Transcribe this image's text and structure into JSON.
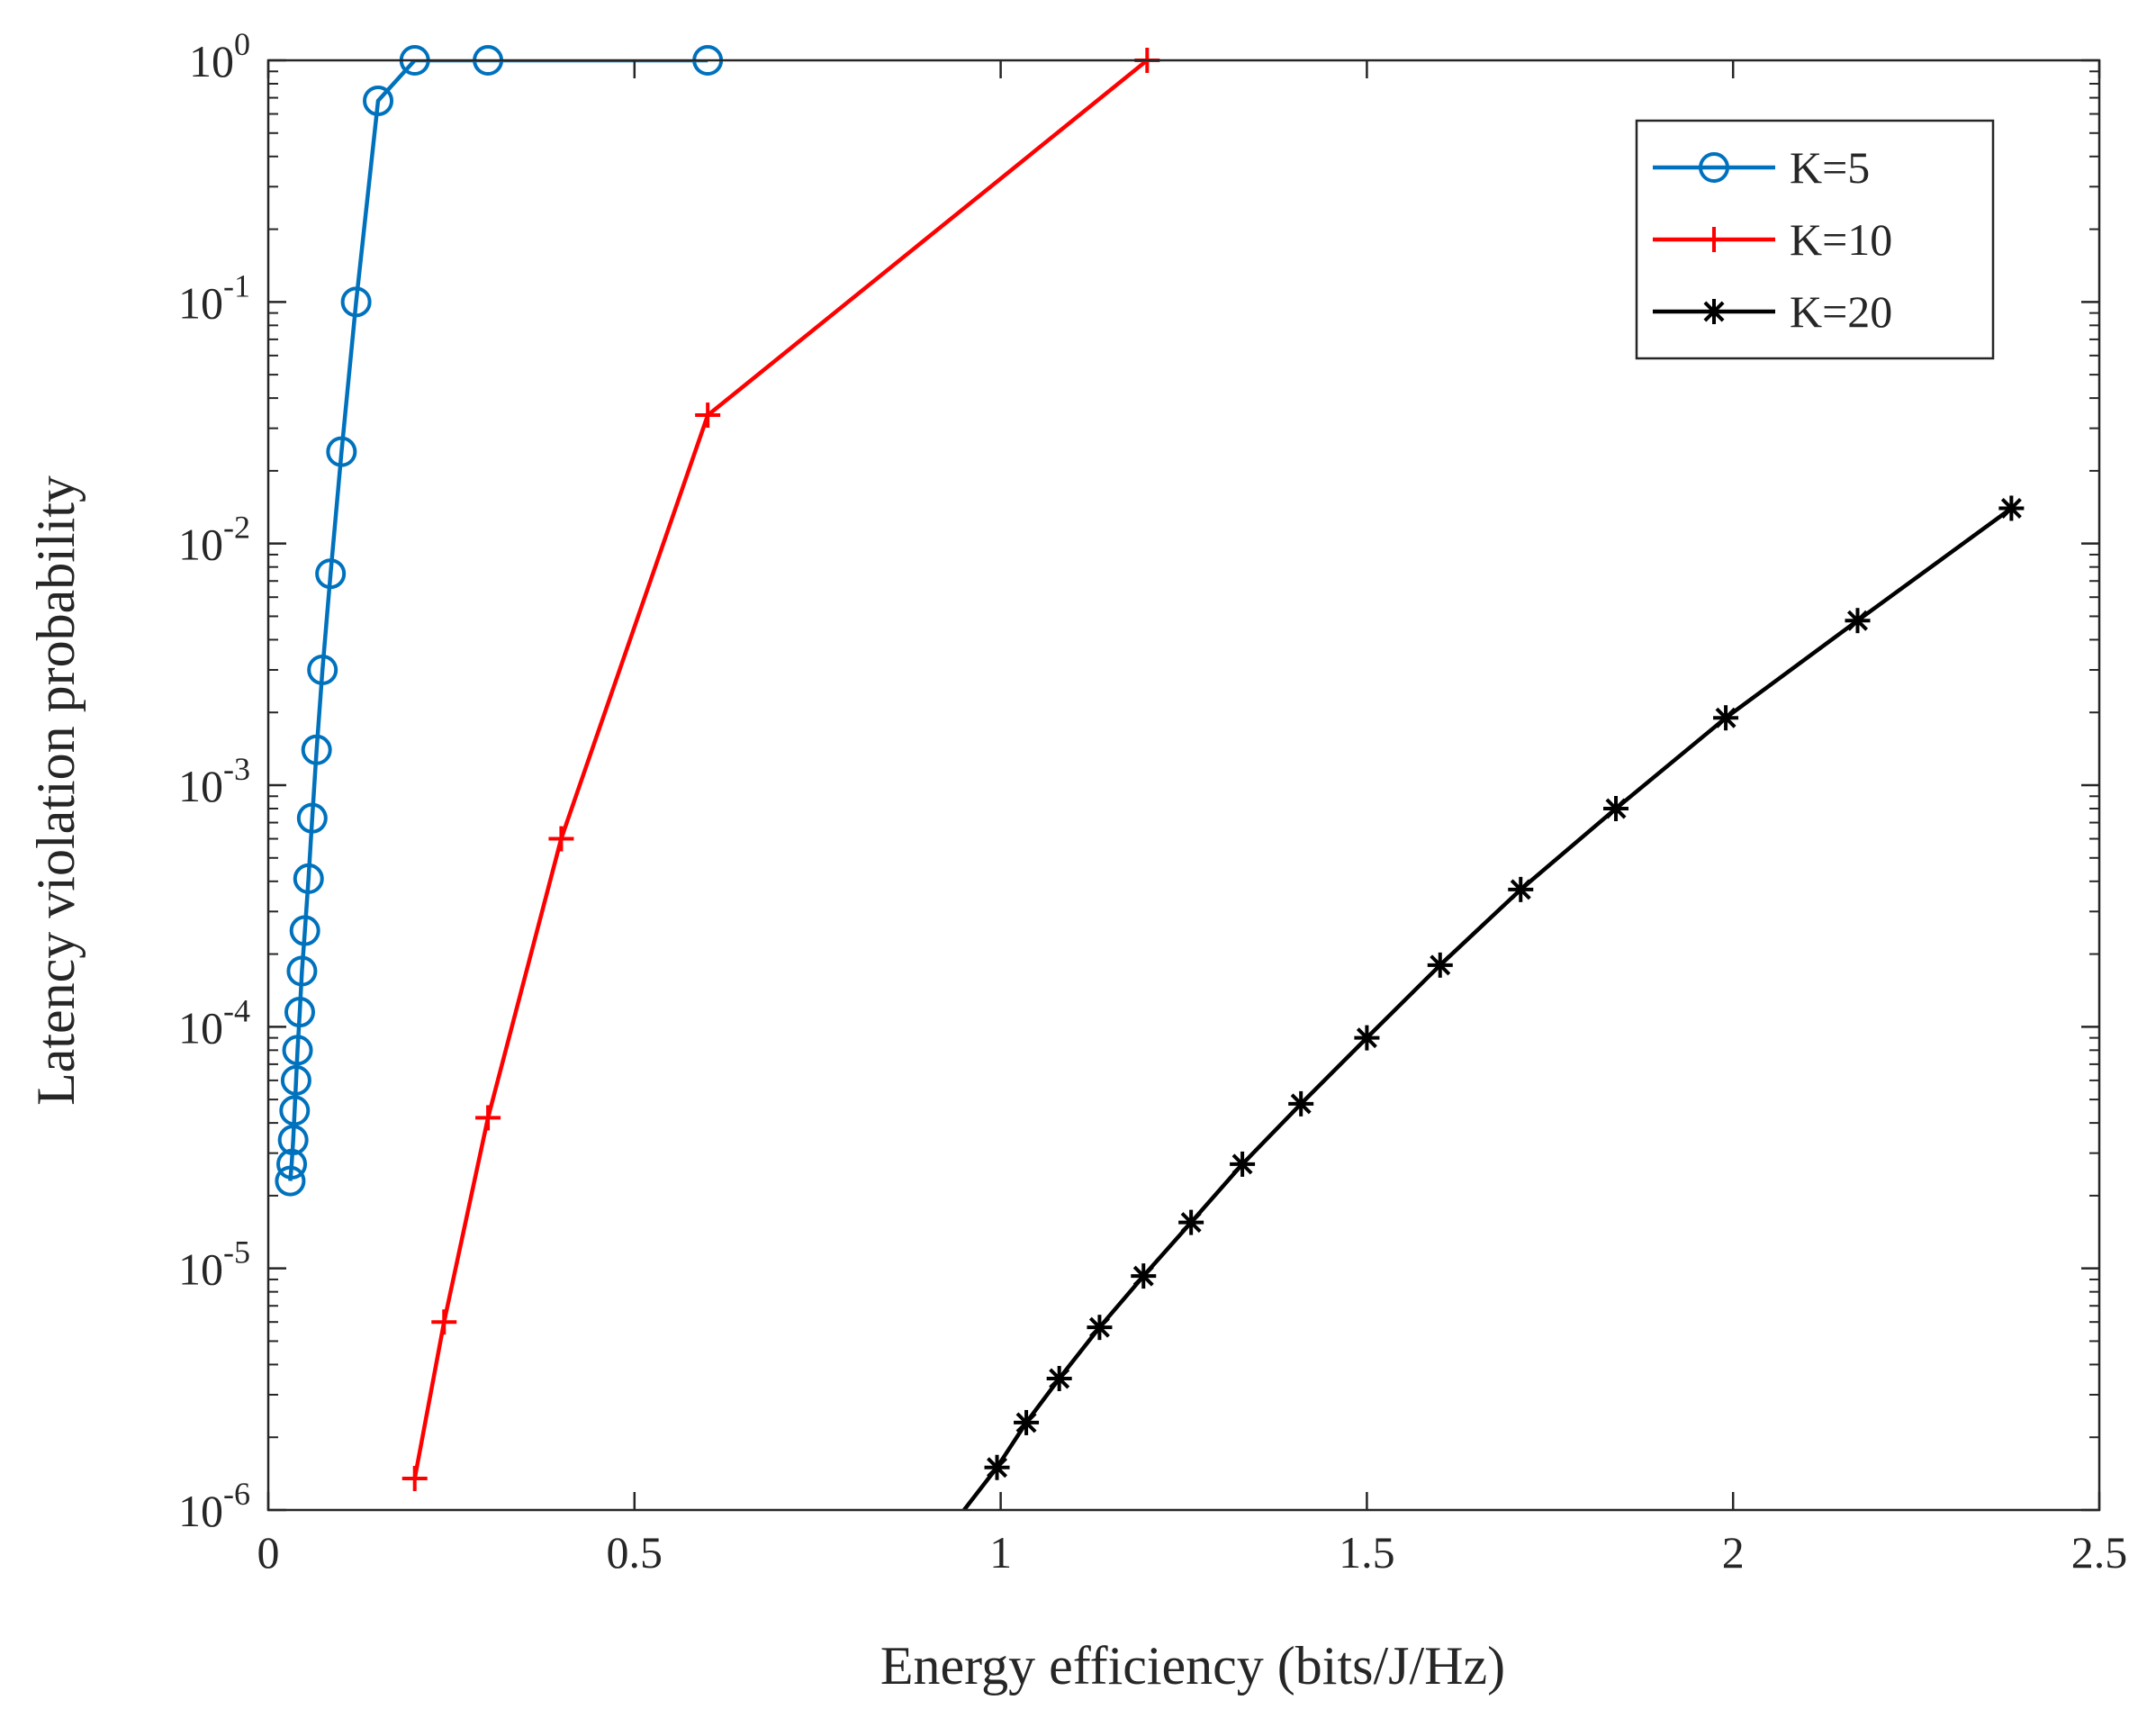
{
  "chart_data": {
    "type": "line",
    "title": "",
    "xlabel": "Energy efficiency (bits/J/Hz)",
    "ylabel": "Latency violation probability",
    "xlim": [
      0,
      2.5
    ],
    "ylim": [
      1e-06,
      1
    ],
    "yscale": "log",
    "grid": false,
    "legend_position": "top-right",
    "x_ticks": [
      {
        "value": 0,
        "label": "0"
      },
      {
        "value": 0.5,
        "label": "0.5"
      },
      {
        "value": 1,
        "label": "1"
      },
      {
        "value": 1.5,
        "label": "1.5"
      },
      {
        "value": 2,
        "label": "2"
      },
      {
        "value": 2.5,
        "label": "2.5"
      }
    ],
    "y_ticks": [
      {
        "value": 1e-06,
        "base": "10",
        "exp": "-6"
      },
      {
        "value": 1e-05,
        "base": "10",
        "exp": "-5"
      },
      {
        "value": 0.0001,
        "base": "10",
        "exp": "-4"
      },
      {
        "value": 0.001,
        "base": "10",
        "exp": "-3"
      },
      {
        "value": 0.01,
        "base": "10",
        "exp": "-2"
      },
      {
        "value": 0.1,
        "base": "10",
        "exp": "-1"
      },
      {
        "value": 1,
        "base": "10",
        "exp": "0"
      }
    ],
    "series": [
      {
        "name": "K=5",
        "color": "#0072BD",
        "marker": "circle",
        "x": [
          0.03,
          0.032,
          0.034,
          0.036,
          0.038,
          0.04,
          0.043,
          0.046,
          0.05,
          0.055,
          0.06,
          0.066,
          0.074,
          0.085,
          0.1,
          0.12,
          0.15,
          0.2,
          0.3,
          0.6
        ],
        "y": [
          2.3e-05,
          2.7e-05,
          3.4e-05,
          4.5e-05,
          6e-05,
          8e-05,
          0.000115,
          0.00017,
          0.00025,
          0.00041,
          0.00073,
          0.0014,
          0.003,
          0.0075,
          0.024,
          0.1,
          0.68,
          1,
          1,
          1
        ]
      },
      {
        "name": "K=10",
        "color": "#FF0000",
        "marker": "plus",
        "x": [
          0.2,
          0.24,
          0.3,
          0.4,
          0.6,
          1.2
        ],
        "y": [
          1.35e-06,
          6e-06,
          4.2e-05,
          0.0006,
          0.034,
          1
        ]
      },
      {
        "name": "K=20",
        "color": "#000000",
        "marker": "asterisk",
        "x": [
          0.95,
          0.995,
          1.035,
          1.08,
          1.135,
          1.195,
          1.26,
          1.33,
          1.41,
          1.5,
          1.6,
          1.71,
          1.84,
          1.99,
          2.17,
          2.38
        ],
        "y": [
          1e-06,
          1.5e-06,
          2.3e-06,
          3.5e-06,
          5.7e-06,
          9.3e-06,
          1.55e-05,
          2.7e-05,
          4.8e-05,
          9e-05,
          0.00018,
          0.00037,
          0.0008,
          0.0019,
          0.0048,
          0.014
        ],
        "marker_x": [
          0.995,
          1.035,
          1.08,
          1.135,
          1.195,
          1.26,
          1.33,
          1.41,
          1.5,
          1.6,
          1.71,
          1.84,
          1.99,
          2.17,
          2.38
        ],
        "marker_y": [
          1.5e-06,
          2.3e-06,
          3.5e-06,
          5.7e-06,
          9.3e-06,
          1.55e-05,
          2.7e-05,
          4.8e-05,
          9e-05,
          0.00018,
          0.00037,
          0.0008,
          0.0019,
          0.0048,
          0.014
        ]
      }
    ]
  }
}
